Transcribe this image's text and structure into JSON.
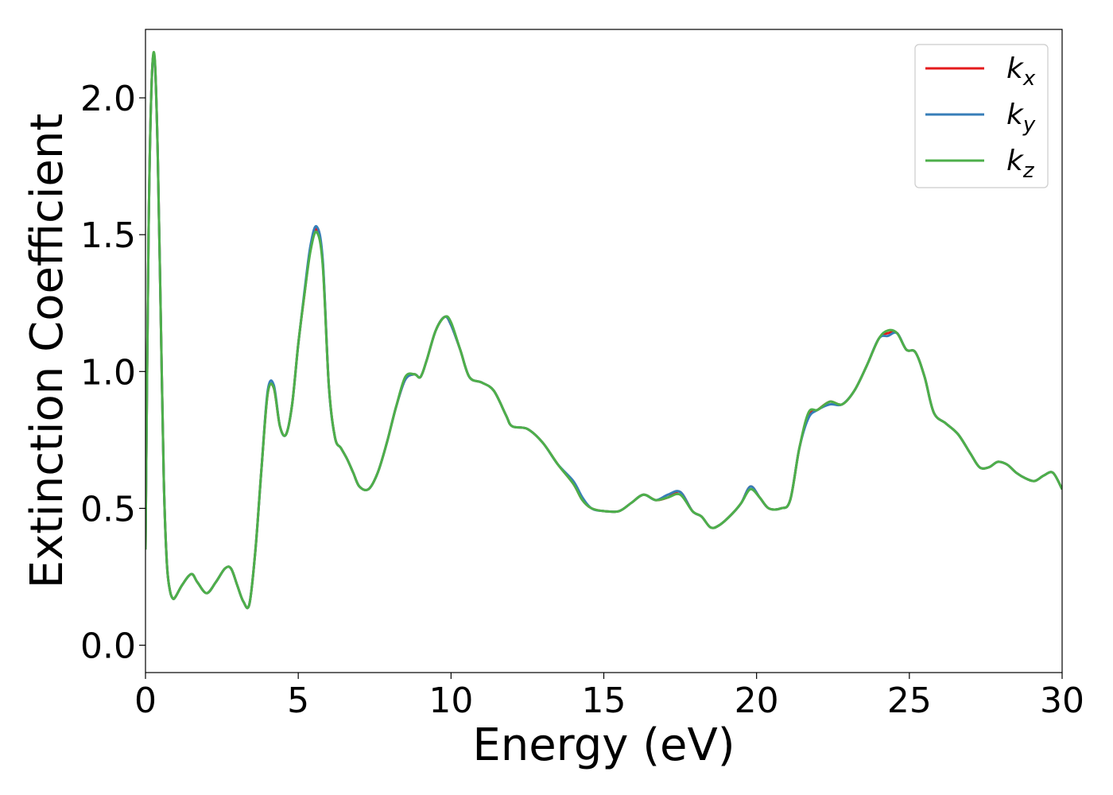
{
  "chart_data": {
    "type": "line",
    "title": "",
    "xlabel": "Energy (eV)",
    "ylabel": "Extinction Coefficient",
    "xlim": [
      0,
      30
    ],
    "ylim": [
      -0.1,
      2.25
    ],
    "xticks": [
      0,
      5,
      10,
      15,
      20,
      25,
      30
    ],
    "xtick_labels": [
      "0",
      "5",
      "10",
      "15",
      "20",
      "25",
      "30"
    ],
    "yticks": [
      0.0,
      0.5,
      1.0,
      1.5,
      2.0
    ],
    "ytick_labels": [
      "0.0",
      "0.5",
      "1.0",
      "1.5",
      "2.0"
    ],
    "grid": false,
    "legend_position": "top-right",
    "x": [
      0,
      0.1,
      0.2,
      0.3,
      0.4,
      0.5,
      0.6,
      0.7,
      0.8,
      0.9,
      1.0,
      1.2,
      1.5,
      1.7,
      2.0,
      2.3,
      2.6,
      2.8,
      3.0,
      3.2,
      3.4,
      3.6,
      3.8,
      4.0,
      4.2,
      4.4,
      4.6,
      4.8,
      5.0,
      5.2,
      5.4,
      5.6,
      5.8,
      6.0,
      6.2,
      6.4,
      6.6,
      6.8,
      7.0,
      7.3,
      7.6,
      7.9,
      8.2,
      8.5,
      8.8,
      9.0,
      9.2,
      9.5,
      9.8,
      10.0,
      10.3,
      10.6,
      11.0,
      11.4,
      11.8,
      12.0,
      12.5,
      13.0,
      13.5,
      14.0,
      14.3,
      14.6,
      15.0,
      15.5,
      15.9,
      16.3,
      16.7,
      17.1,
      17.5,
      17.9,
      18.2,
      18.5,
      18.8,
      19.2,
      19.5,
      19.8,
      20.1,
      20.4,
      20.8,
      21.1,
      21.4,
      21.7,
      22.0,
      22.4,
      22.8,
      23.2,
      23.6,
      24.0,
      24.3,
      24.6,
      24.9,
      25.2,
      25.5,
      25.8,
      26.2,
      26.6,
      27.0,
      27.3,
      27.6,
      27.9,
      28.2,
      28.5,
      28.8,
      29.1,
      29.4,
      29.7,
      30.0
    ],
    "series": [
      {
        "name": "k_x",
        "color": "#e41a1c",
        "values": [
          0.35,
          1.5,
          2.05,
          2.14,
          1.8,
          1.2,
          0.6,
          0.3,
          0.2,
          0.17,
          0.18,
          0.22,
          0.26,
          0.23,
          0.19,
          0.23,
          0.28,
          0.28,
          0.22,
          0.16,
          0.15,
          0.35,
          0.65,
          0.92,
          0.94,
          0.8,
          0.77,
          0.88,
          1.1,
          1.28,
          1.45,
          1.52,
          1.4,
          0.95,
          0.76,
          0.72,
          0.68,
          0.63,
          0.58,
          0.57,
          0.63,
          0.74,
          0.87,
          0.97,
          0.99,
          0.98,
          1.04,
          1.15,
          1.2,
          1.17,
          1.08,
          0.98,
          0.96,
          0.93,
          0.84,
          0.8,
          0.79,
          0.74,
          0.66,
          0.59,
          0.53,
          0.5,
          0.49,
          0.49,
          0.52,
          0.55,
          0.53,
          0.54,
          0.56,
          0.49,
          0.47,
          0.43,
          0.44,
          0.48,
          0.52,
          0.58,
          0.54,
          0.5,
          0.5,
          0.53,
          0.72,
          0.84,
          0.86,
          0.89,
          0.88,
          0.93,
          1.02,
          1.12,
          1.14,
          1.14,
          1.08,
          1.07,
          0.98,
          0.85,
          0.81,
          0.77,
          0.7,
          0.65,
          0.65,
          0.67,
          0.66,
          0.63,
          0.61,
          0.6,
          0.62,
          0.63,
          0.57
        ]
      },
      {
        "name": "k_y",
        "color": "#377eb8",
        "values": [
          0.35,
          1.5,
          2.05,
          2.14,
          1.8,
          1.2,
          0.6,
          0.3,
          0.2,
          0.17,
          0.18,
          0.22,
          0.26,
          0.23,
          0.19,
          0.23,
          0.28,
          0.28,
          0.22,
          0.16,
          0.15,
          0.35,
          0.65,
          0.93,
          0.95,
          0.8,
          0.77,
          0.88,
          1.1,
          1.29,
          1.46,
          1.53,
          1.41,
          0.95,
          0.76,
          0.72,
          0.68,
          0.63,
          0.58,
          0.57,
          0.63,
          0.74,
          0.87,
          0.97,
          0.99,
          0.98,
          1.04,
          1.15,
          1.2,
          1.17,
          1.08,
          0.98,
          0.96,
          0.93,
          0.84,
          0.8,
          0.79,
          0.74,
          0.66,
          0.6,
          0.54,
          0.5,
          0.49,
          0.49,
          0.52,
          0.55,
          0.53,
          0.55,
          0.56,
          0.49,
          0.47,
          0.43,
          0.44,
          0.48,
          0.52,
          0.58,
          0.54,
          0.5,
          0.5,
          0.53,
          0.72,
          0.83,
          0.86,
          0.88,
          0.88,
          0.93,
          1.02,
          1.12,
          1.13,
          1.14,
          1.08,
          1.07,
          0.98,
          0.85,
          0.81,
          0.77,
          0.7,
          0.65,
          0.65,
          0.67,
          0.66,
          0.63,
          0.61,
          0.6,
          0.62,
          0.63,
          0.57
        ]
      },
      {
        "name": "k_z",
        "color": "#4daf4a",
        "values": [
          0.35,
          1.5,
          2.05,
          2.15,
          1.8,
          1.2,
          0.6,
          0.3,
          0.2,
          0.17,
          0.18,
          0.22,
          0.26,
          0.23,
          0.19,
          0.23,
          0.28,
          0.28,
          0.22,
          0.16,
          0.15,
          0.35,
          0.65,
          0.92,
          0.94,
          0.8,
          0.77,
          0.88,
          1.1,
          1.28,
          1.44,
          1.51,
          1.39,
          0.95,
          0.76,
          0.72,
          0.68,
          0.63,
          0.58,
          0.57,
          0.63,
          0.74,
          0.87,
          0.98,
          0.99,
          0.98,
          1.04,
          1.15,
          1.2,
          1.18,
          1.08,
          0.98,
          0.96,
          0.93,
          0.84,
          0.8,
          0.79,
          0.74,
          0.66,
          0.59,
          0.53,
          0.5,
          0.49,
          0.49,
          0.52,
          0.55,
          0.53,
          0.54,
          0.55,
          0.49,
          0.47,
          0.43,
          0.44,
          0.48,
          0.52,
          0.57,
          0.54,
          0.5,
          0.5,
          0.53,
          0.72,
          0.85,
          0.86,
          0.89,
          0.88,
          0.93,
          1.02,
          1.12,
          1.15,
          1.14,
          1.08,
          1.07,
          0.98,
          0.85,
          0.81,
          0.77,
          0.7,
          0.65,
          0.65,
          0.67,
          0.66,
          0.63,
          0.61,
          0.6,
          0.62,
          0.63,
          0.57
        ]
      }
    ],
    "legend": [
      {
        "base": "k",
        "sub": "x",
        "color": "#e41a1c"
      },
      {
        "base": "k",
        "sub": "y",
        "color": "#377eb8"
      },
      {
        "base": "k",
        "sub": "z",
        "color": "#4daf4a"
      }
    ]
  }
}
